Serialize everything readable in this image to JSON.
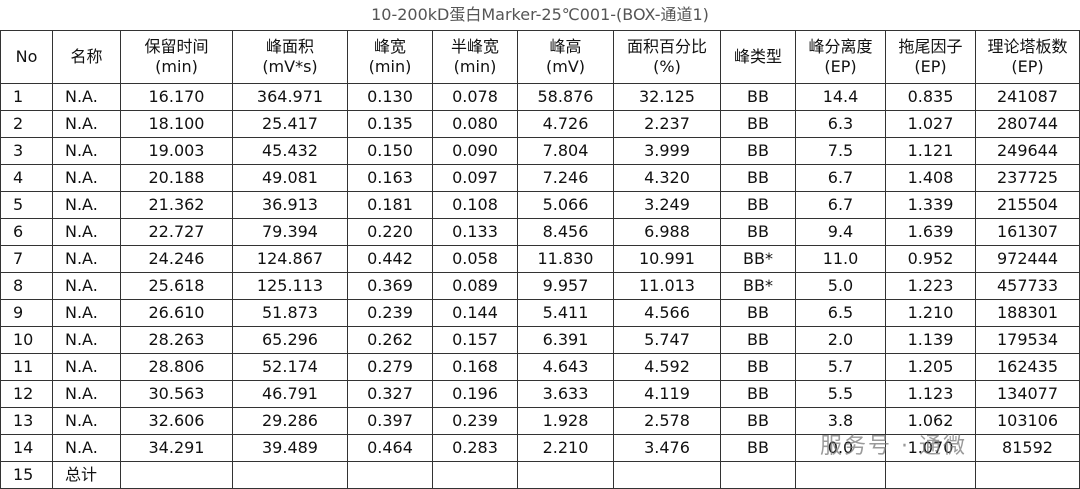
{
  "title": "10-200kD蛋白Marker-25℃001-(BOX-通道1)",
  "table": {
    "header": [
      [
        "No"
      ],
      [
        "名称"
      ],
      [
        "保留时间",
        "(min)"
      ],
      [
        "峰面积",
        "(mV*s)"
      ],
      [
        "峰宽",
        "(min)"
      ],
      [
        "半峰宽",
        "(min)"
      ],
      [
        "峰高",
        "(mV)"
      ],
      [
        "面积百分比",
        "(%)"
      ],
      [
        "峰类型"
      ],
      [
        "峰分离度",
        "(EP)"
      ],
      [
        "拖尾因子",
        "(EP)"
      ],
      [
        "理论塔板数",
        "(EP)"
      ]
    ],
    "rows": [
      [
        "1",
        "N.A.",
        "16.170",
        "364.971",
        "0.130",
        "0.078",
        "58.876",
        "32.125",
        "BB",
        "14.4",
        "0.835",
        "241087"
      ],
      [
        "2",
        "N.A.",
        "18.100",
        "25.417",
        "0.135",
        "0.080",
        "4.726",
        "2.237",
        "BB",
        "6.3",
        "1.027",
        "280744"
      ],
      [
        "3",
        "N.A.",
        "19.003",
        "45.432",
        "0.150",
        "0.090",
        "7.804",
        "3.999",
        "BB",
        "7.5",
        "1.121",
        "249644"
      ],
      [
        "4",
        "N.A.",
        "20.188",
        "49.081",
        "0.163",
        "0.097",
        "7.246",
        "4.320",
        "BB",
        "6.7",
        "1.408",
        "237725"
      ],
      [
        "5",
        "N.A.",
        "21.362",
        "36.913",
        "0.181",
        "0.108",
        "5.066",
        "3.249",
        "BB",
        "6.7",
        "1.339",
        "215504"
      ],
      [
        "6",
        "N.A.",
        "22.727",
        "79.394",
        "0.220",
        "0.133",
        "8.456",
        "6.988",
        "BB",
        "9.4",
        "1.639",
        "161307"
      ],
      [
        "7",
        "N.A.",
        "24.246",
        "124.867",
        "0.442",
        "0.058",
        "11.830",
        "10.991",
        "BB*",
        "11.0",
        "0.952",
        "972444"
      ],
      [
        "8",
        "N.A.",
        "25.618",
        "125.113",
        "0.369",
        "0.089",
        "9.957",
        "11.013",
        "BB*",
        "5.0",
        "1.223",
        "457733"
      ],
      [
        "9",
        "N.A.",
        "26.610",
        "51.873",
        "0.239",
        "0.144",
        "5.411",
        "4.566",
        "BB",
        "6.5",
        "1.210",
        "188301"
      ],
      [
        "10",
        "N.A.",
        "28.263",
        "65.296",
        "0.262",
        "0.157",
        "6.391",
        "5.747",
        "BB",
        "2.0",
        "1.139",
        "179534"
      ],
      [
        "11",
        "N.A.",
        "28.806",
        "52.174",
        "0.279",
        "0.168",
        "4.643",
        "4.592",
        "BB",
        "5.7",
        "1.205",
        "162435"
      ],
      [
        "12",
        "N.A.",
        "30.563",
        "46.791",
        "0.327",
        "0.196",
        "3.633",
        "4.119",
        "BB",
        "5.5",
        "1.123",
        "134077"
      ],
      [
        "13",
        "N.A.",
        "32.606",
        "29.286",
        "0.397",
        "0.239",
        "1.928",
        "2.578",
        "BB",
        "3.8",
        "1.062",
        "103106"
      ],
      [
        "14",
        "N.A.",
        "34.291",
        "39.489",
        "0.464",
        "0.283",
        "2.210",
        "3.476",
        "BB",
        "0.0",
        "1.070",
        "81592"
      ],
      [
        "15",
        "总计"
      ]
    ]
  },
  "watermark": "服务号 · 通微"
}
